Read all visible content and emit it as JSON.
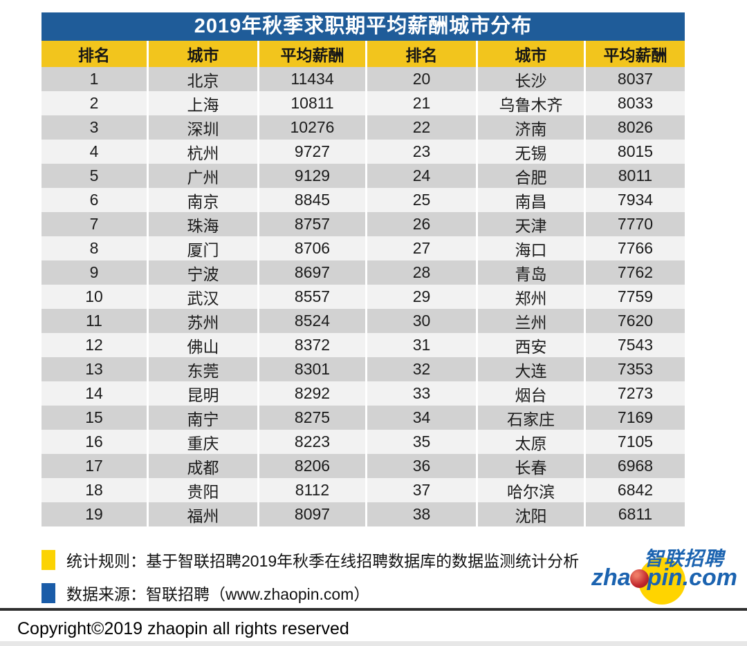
{
  "chart_data": {
    "type": "table",
    "title": "2019年秋季求职期平均薪酬城市分布",
    "columns": [
      "排名",
      "城市",
      "平均薪酬"
    ],
    "rows": [
      {
        "rank": 1,
        "city": "北京",
        "salary": 11434
      },
      {
        "rank": 2,
        "city": "上海",
        "salary": 10811
      },
      {
        "rank": 3,
        "city": "深圳",
        "salary": 10276
      },
      {
        "rank": 4,
        "city": "杭州",
        "salary": 9727
      },
      {
        "rank": 5,
        "city": "广州",
        "salary": 9129
      },
      {
        "rank": 6,
        "city": "南京",
        "salary": 8845
      },
      {
        "rank": 7,
        "city": "珠海",
        "salary": 8757
      },
      {
        "rank": 8,
        "city": "厦门",
        "salary": 8706
      },
      {
        "rank": 9,
        "city": "宁波",
        "salary": 8697
      },
      {
        "rank": 10,
        "city": "武汉",
        "salary": 8557
      },
      {
        "rank": 11,
        "city": "苏州",
        "salary": 8524
      },
      {
        "rank": 12,
        "city": "佛山",
        "salary": 8372
      },
      {
        "rank": 13,
        "city": "东莞",
        "salary": 8301
      },
      {
        "rank": 14,
        "city": "昆明",
        "salary": 8292
      },
      {
        "rank": 15,
        "city": "南宁",
        "salary": 8275
      },
      {
        "rank": 16,
        "city": "重庆",
        "salary": 8223
      },
      {
        "rank": 17,
        "city": "成都",
        "salary": 8206
      },
      {
        "rank": 18,
        "city": "贵阳",
        "salary": 8112
      },
      {
        "rank": 19,
        "city": "福州",
        "salary": 8097
      },
      {
        "rank": 20,
        "city": "长沙",
        "salary": 8037
      },
      {
        "rank": 21,
        "city": "乌鲁木齐",
        "salary": 8033
      },
      {
        "rank": 22,
        "city": "济南",
        "salary": 8026
      },
      {
        "rank": 23,
        "city": "无锡",
        "salary": 8015
      },
      {
        "rank": 24,
        "city": "合肥",
        "salary": 8011
      },
      {
        "rank": 25,
        "city": "南昌",
        "salary": 7934
      },
      {
        "rank": 26,
        "city": "天津",
        "salary": 7770
      },
      {
        "rank": 27,
        "city": "海口",
        "salary": 7766
      },
      {
        "rank": 28,
        "city": "青岛",
        "salary": 7762
      },
      {
        "rank": 29,
        "city": "郑州",
        "salary": 7759
      },
      {
        "rank": 30,
        "city": "兰州",
        "salary": 7620
      },
      {
        "rank": 31,
        "city": "西安",
        "salary": 7543
      },
      {
        "rank": 32,
        "city": "大连",
        "salary": 7353
      },
      {
        "rank": 33,
        "city": "烟台",
        "salary": 7273
      },
      {
        "rank": 34,
        "city": "石家庄",
        "salary": 7169
      },
      {
        "rank": 35,
        "city": "太原",
        "salary": 7105
      },
      {
        "rank": 36,
        "city": "长春",
        "salary": 6968
      },
      {
        "rank": 37,
        "city": "哈尔滨",
        "salary": 6842
      },
      {
        "rank": 38,
        "city": "沈阳",
        "salary": 6811
      }
    ]
  },
  "table": {
    "headers": [
      "排名",
      "城市",
      "平均薪酬",
      "排名",
      "城市",
      "平均薪酬"
    ]
  },
  "notes": [
    {
      "marker_color": "#FBD303",
      "text": "统计规则：基于智联招聘2019年秋季在线招聘数据库的数据监测统计分析"
    },
    {
      "marker_color": "#1A5CA8",
      "text": "数据来源：智联招聘（www.zhaopin.com）"
    }
  ],
  "logo": {
    "cn": "智联招聘",
    "brand_pre": "zha",
    "brand_post": "pin.com"
  },
  "copyright": "Copyright©2019 zhaopin all rights reserved",
  "colors": {
    "title_bar": "#1F5C99",
    "header": "#F2C51D",
    "row_dark": "#D2D2D2",
    "row_light": "#F2F2F2",
    "note_yellow": "#FBD303",
    "note_blue": "#1A5CA8",
    "logo_blue": "#1B63B0",
    "logo_yellow": "#FFD400",
    "logo_red": "#C1272D"
  }
}
